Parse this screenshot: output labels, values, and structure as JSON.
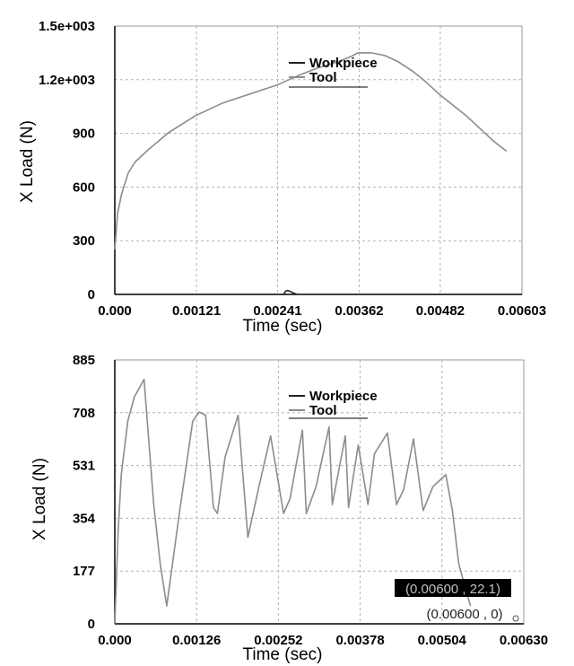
{
  "colors": {
    "workpiece": "#222222",
    "tool": "#8c8c8c",
    "grid": "#b4b4b4",
    "readout_bg": "#000000",
    "readout_text": "#bfbfbf"
  },
  "chart_data": [
    {
      "type": "line",
      "ylabel": "X Load (N)",
      "xlabel": "Time (sec)",
      "xlim": [
        0,
        0.00603
      ],
      "ylim": [
        0,
        1500
      ],
      "x_ticks": [
        0,
        0.00121,
        0.00241,
        0.00362,
        0.00482,
        0.00603
      ],
      "x_tick_labels": [
        "0.000",
        "0.00121",
        "0.00241",
        "0.00362",
        "0.00482",
        "0.00603"
      ],
      "y_ticks": [
        0,
        300,
        600,
        900,
        1200,
        1500
      ],
      "y_tick_labels": [
        "0",
        "300",
        "600",
        "900",
        "1.2e+003",
        "1.5e+003"
      ],
      "grid": true,
      "legend": "top-center",
      "series": [
        {
          "name": "Workpiece",
          "x": [
            0.0025,
            0.00253,
            0.00256,
            0.0026,
            0.00264,
            0.0027
          ],
          "y": [
            0,
            18,
            22,
            16,
            8,
            0
          ]
        },
        {
          "name": "Tool",
          "x": [
            0,
            4e-05,
            0.0001,
            0.0002,
            0.0003,
            0.0005,
            0.0008,
            0.0012,
            0.0016,
            0.002,
            0.0024,
            0.0027,
            0.003,
            0.0033,
            0.0035,
            0.0036,
            0.0038,
            0.004,
            0.0042,
            0.0044,
            0.0046,
            0.0048,
            0.005,
            0.0052,
            0.0054,
            0.0056,
            0.0058
          ],
          "y": [
            250,
            450,
            560,
            680,
            740,
            810,
            905,
            1000,
            1070,
            1120,
            1170,
            1220,
            1265,
            1300,
            1330,
            1350,
            1350,
            1335,
            1300,
            1250,
            1190,
            1120,
            1060,
            1000,
            930,
            860,
            800
          ]
        }
      ]
    },
    {
      "type": "line",
      "ylabel": "X Load (N)",
      "xlabel": "Time (sec)",
      "xlim": [
        0,
        0.0063
      ],
      "ylim": [
        0,
        885
      ],
      "x_ticks": [
        0,
        0.00126,
        0.00252,
        0.00378,
        0.00504,
        0.0063
      ],
      "x_tick_labels": [
        "0.000",
        "0.00126",
        "0.00252",
        "0.00378",
        "0.00504",
        "0.00630"
      ],
      "y_ticks": [
        0,
        177,
        354,
        531,
        708,
        885
      ],
      "y_tick_labels": [
        "0",
        "177",
        "354",
        "531",
        "708",
        "885"
      ],
      "grid": true,
      "legend": "top-center",
      "series": [
        {
          "name": "Workpiece",
          "x": [],
          "y": []
        },
        {
          "name": "Tool",
          "x": [
            0,
            5e-05,
            0.0001,
            0.0002,
            0.0003,
            0.0004,
            0.00045,
            0.0006,
            0.0007,
            0.0008,
            0.001,
            0.0012,
            0.0013,
            0.0014,
            0.00152,
            0.00158,
            0.0017,
            0.0019,
            0.00205,
            0.00222,
            0.0024,
            0.0026,
            0.0027,
            0.00289,
            0.00295,
            0.0031,
            0.0033,
            0.00335,
            0.00355,
            0.0036,
            0.00375,
            0.0039,
            0.004,
            0.0042,
            0.00434,
            0.00445,
            0.0046,
            0.00475,
            0.0049,
            0.005,
            0.0051,
            0.0052,
            0.0053,
            0.0054,
            0.00548
          ],
          "y": [
            0,
            300,
            500,
            680,
            760,
            800,
            820,
            400,
            200,
            60,
            380,
            680,
            710,
            700,
            390,
            370,
            560,
            700,
            290,
            460,
            630,
            370,
            420,
            650,
            370,
            460,
            660,
            400,
            630,
            390,
            600,
            400,
            570,
            640,
            400,
            450,
            620,
            380,
            460,
            480,
            500,
            380,
            200,
            120,
            60
          ]
        }
      ],
      "readouts": [
        "(0.00600 , 22.1)",
        "(0.00600 , 0)"
      ]
    }
  ]
}
